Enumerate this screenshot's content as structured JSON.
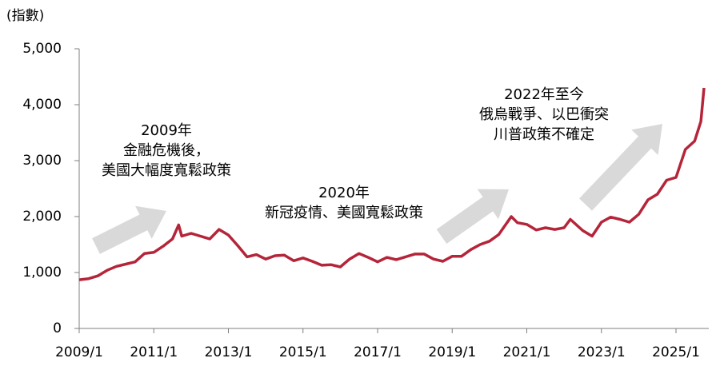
{
  "chart_data": {
    "type": "line",
    "y_label": "(指數)",
    "x": [
      "2009/1",
      "2009/4",
      "2009/7",
      "2009/10",
      "2010/1",
      "2010/4",
      "2010/7",
      "2010/10",
      "2011/1",
      "2011/4",
      "2011/7",
      "2011/9",
      "2011/10",
      "2012/1",
      "2012/4",
      "2012/7",
      "2012/10",
      "2013/1",
      "2013/4",
      "2013/7",
      "2013/10",
      "2014/1",
      "2014/4",
      "2014/7",
      "2014/10",
      "2015/1",
      "2015/4",
      "2015/7",
      "2015/10",
      "2016/1",
      "2016/4",
      "2016/7",
      "2016/10",
      "2017/1",
      "2017/4",
      "2017/7",
      "2017/10",
      "2018/1",
      "2018/4",
      "2018/7",
      "2018/10",
      "2019/1",
      "2019/4",
      "2019/7",
      "2019/10",
      "2020/1",
      "2020/4",
      "2020/8",
      "2020/10",
      "2021/1",
      "2021/4",
      "2021/7",
      "2021/10",
      "2022/1",
      "2022/3",
      "2022/4",
      "2022/7",
      "2022/10",
      "2023/1",
      "2023/4",
      "2023/7",
      "2023/10",
      "2024/1",
      "2024/4",
      "2024/7",
      "2024/10",
      "2025/1",
      "2025/4",
      "2025/7",
      "2025/9",
      "2025/10"
    ],
    "series": [
      {
        "color": "#b5253a",
        "values": [
          870,
          890,
          940,
          1040,
          1110,
          1150,
          1190,
          1340,
          1360,
          1470,
          1600,
          1850,
          1650,
          1700,
          1650,
          1600,
          1770,
          1670,
          1480,
          1280,
          1320,
          1240,
          1300,
          1310,
          1210,
          1260,
          1200,
          1130,
          1140,
          1100,
          1240,
          1340,
          1270,
          1190,
          1270,
          1230,
          1280,
          1330,
          1330,
          1240,
          1200,
          1290,
          1290,
          1410,
          1500,
          1560,
          1680,
          2000,
          1890,
          1860,
          1760,
          1800,
          1770,
          1800,
          1950,
          1900,
          1750,
          1650,
          1900,
          1990,
          1950,
          1900,
          2040,
          2300,
          2400,
          2650,
          2700,
          3200,
          3350,
          3700,
          4300
        ]
      }
    ],
    "ylim": [
      0,
      5000
    ],
    "yticks": [
      0,
      {
        "value": 1000,
        "label": "1,000"
      },
      {
        "value": 2000,
        "label": "2,000"
      },
      {
        "value": 3000,
        "label": "3,000"
      },
      {
        "value": 4000,
        "label": "4,000"
      },
      {
        "value": 5000,
        "label": "5,000"
      }
    ],
    "xticks": [
      "2009/1",
      "2011/1",
      "2013/1",
      "2015/1",
      "2017/1",
      "2019/1",
      "2021/1",
      "2023/1",
      "2025/1"
    ],
    "annotations": [
      {
        "lines": [
          "2009年",
          "金融危機後，",
          "美國大幅度寬鬆政策"
        ]
      },
      {
        "lines": [
          "2020年",
          "新冠疫情、美國寬鬆政策"
        ]
      },
      {
        "lines": [
          "2022年至今",
          "俄烏戰爭、以巴衝突",
          "川普政策不確定"
        ]
      }
    ]
  }
}
